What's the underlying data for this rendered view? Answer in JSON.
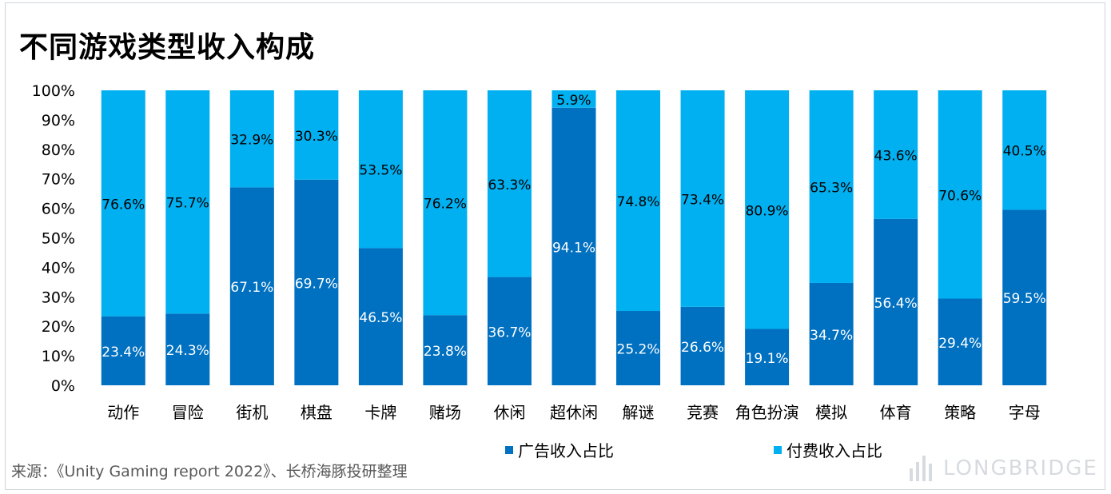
{
  "title": "不同游戏类型收入构成",
  "source": "来源：《Unity Gaming report 2022》、长桥海豚投研整理",
  "watermark": "LONGBRIDGE",
  "colors": {
    "ad": "#0070C0",
    "paid": "#00B0F0",
    "axis_text": "#000000"
  },
  "chart_data": {
    "type": "bar",
    "stacked": true,
    "categories": [
      "动作",
      "冒险",
      "街机",
      "棋盘",
      "卡牌",
      "赌场",
      "休闲",
      "超休闲",
      "解谜",
      "竞赛",
      "角色扮演",
      "模拟",
      "体育",
      "策略",
      "字母"
    ],
    "series": [
      {
        "name": "广告收入占比",
        "values": [
          23.4,
          24.3,
          67.1,
          69.7,
          46.5,
          23.8,
          36.7,
          94.1,
          25.2,
          26.6,
          19.1,
          34.7,
          56.4,
          29.4,
          59.5
        ]
      },
      {
        "name": "付费收入占比",
        "values": [
          76.6,
          75.7,
          32.9,
          30.3,
          53.5,
          76.2,
          63.3,
          5.9,
          74.8,
          73.4,
          80.9,
          65.3,
          43.6,
          70.6,
          40.5
        ]
      }
    ],
    "ylim": [
      0,
      100
    ],
    "yticks": [
      "0%",
      "10%",
      "20%",
      "30%",
      "40%",
      "50%",
      "60%",
      "70%",
      "80%",
      "90%",
      "100%"
    ],
    "legend_position": "bottom",
    "grid": false
  }
}
